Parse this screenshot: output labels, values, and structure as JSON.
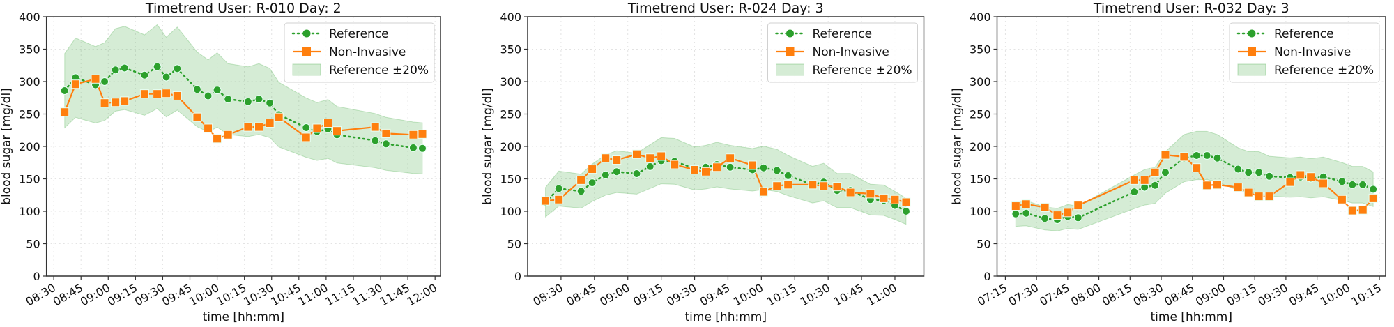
{
  "colors": {
    "reference": "#2ca02c",
    "noninvasive": "#ff7f0e",
    "band": "#2ca02c"
  },
  "chart_data": [
    {
      "type": "line",
      "title": "Timetrend User: R-010 Day: 2",
      "xlabel": "time [hh:mm]",
      "ylabel": "blood sugar [mg/dl]",
      "ylim": [
        0,
        400
      ],
      "yticks": [
        0,
        50,
        100,
        150,
        200,
        250,
        300,
        350,
        400
      ],
      "xlim": [
        "08:26",
        "12:03"
      ],
      "xticks": [
        "08:30",
        "08:45",
        "09:00",
        "09:15",
        "09:30",
        "09:45",
        "10:00",
        "10:15",
        "10:30",
        "10:45",
        "11:00",
        "11:15",
        "11:30",
        "11:45",
        "12:00"
      ],
      "grid": true,
      "legend_position": "top-right",
      "legend": [
        "Reference",
        "Non-Invasive",
        "Reference ±20%"
      ],
      "band_fraction": 0.2,
      "x": [
        "08:36",
        "08:42",
        "08:53",
        "08:58",
        "09:04",
        "09:09",
        "09:20",
        "09:27",
        "09:32",
        "09:38",
        "09:49",
        "09:55",
        "10:00",
        "10:06",
        "10:17",
        "10:23",
        "10:29",
        "10:34",
        "10:49",
        "10:55",
        "11:01",
        "11:06",
        "11:27",
        "11:33",
        "11:48",
        "11:53"
      ],
      "series": [
        {
          "name": "Reference",
          "values": [
            286,
            306,
            295,
            300,
            318,
            321,
            310,
            323,
            307,
            320,
            288,
            278,
            287,
            273,
            269,
            273,
            267,
            249,
            229,
            223,
            227,
            218,
            209,
            204,
            198,
            197
          ]
        },
        {
          "name": "Non-Invasive",
          "values": [
            253,
            296,
            304,
            267,
            268,
            270,
            281,
            281,
            282,
            278,
            245,
            228,
            212,
            218,
            230,
            230,
            236,
            245,
            214,
            228,
            236,
            224,
            230,
            220,
            218,
            219
          ]
        }
      ]
    },
    {
      "type": "line",
      "title": "Timetrend User: R-024 Day: 3",
      "xlabel": "time [hh:mm]",
      "ylabel": "blood sugar [mg/dl]",
      "ylim": [
        0,
        400
      ],
      "yticks": [
        0,
        50,
        100,
        150,
        200,
        250,
        300,
        350,
        400
      ],
      "xlim": [
        "08:15",
        "11:13"
      ],
      "xticks": [
        "08:30",
        "08:45",
        "09:00",
        "09:15",
        "09:30",
        "09:45",
        "10:00",
        "10:15",
        "10:30",
        "10:45",
        "11:00"
      ],
      "grid": true,
      "legend_position": "top-right",
      "legend": [
        "Reference",
        "Non-Invasive",
        "Reference ±20%"
      ],
      "band_fraction": 0.2,
      "x": [
        "08:23",
        "08:29",
        "08:39",
        "08:44",
        "08:50",
        "08:55",
        "09:04",
        "09:10",
        "09:15",
        "09:21",
        "09:30",
        "09:35",
        "09:40",
        "09:46",
        "09:56",
        "10:01",
        "10:07",
        "10:12",
        "10:23",
        "10:28",
        "10:34",
        "10:40",
        "10:49",
        "10:55",
        "11:00",
        "11:05"
      ],
      "series": [
        {
          "name": "Reference",
          "values": [
            114,
            135,
            131,
            144,
            156,
            161,
            158,
            169,
            178,
            177,
            166,
            168,
            172,
            168,
            164,
            167,
            163,
            155,
            141,
            145,
            132,
            132,
            118,
            117,
            109,
            100
          ]
        },
        {
          "name": "Non-Invasive",
          "values": [
            116,
            118,
            148,
            165,
            182,
            179,
            188,
            182,
            185,
            172,
            164,
            161,
            168,
            182,
            171,
            130,
            139,
            141,
            141,
            139,
            138,
            129,
            127,
            120,
            118,
            114
          ]
        }
      ]
    },
    {
      "type": "line",
      "title": "Timetrend User: R-032 Day: 3",
      "xlabel": "time [hh:mm]",
      "ylabel": "blood sugar [mg/dl]",
      "ylim": [
        0,
        400
      ],
      "yticks": [
        0,
        50,
        100,
        150,
        200,
        250,
        300,
        350,
        400
      ],
      "xlim": [
        "07:11",
        "10:18"
      ],
      "xticks": [
        "07:15",
        "07:30",
        "07:45",
        "08:00",
        "08:15",
        "08:30",
        "08:45",
        "09:00",
        "09:15",
        "09:30",
        "09:45",
        "10:00",
        "10:15"
      ],
      "grid": true,
      "legend_position": "top-right",
      "legend": [
        "Reference",
        "Non-Invasive",
        "Reference ±20%"
      ],
      "band_fraction": 0.2,
      "x": [
        "07:20",
        "07:25",
        "07:34",
        "07:40",
        "07:45",
        "07:50",
        "08:17",
        "08:22",
        "08:27",
        "08:32",
        "08:41",
        "08:47",
        "08:52",
        "08:57",
        "09:07",
        "09:12",
        "09:17",
        "09:22",
        "09:32",
        "09:37",
        "09:42",
        "09:48",
        "09:57",
        "10:02",
        "10:07",
        "10:12"
      ],
      "series": [
        {
          "name": "Reference",
          "values": [
            96,
            97,
            89,
            87,
            92,
            90,
            130,
            137,
            140,
            160,
            182,
            186,
            186,
            182,
            165,
            160,
            160,
            154,
            152,
            153,
            151,
            153,
            146,
            141,
            141,
            134
          ]
        },
        {
          "name": "Non-Invasive",
          "values": [
            108,
            111,
            106,
            94,
            98,
            109,
            148,
            148,
            160,
            187,
            184,
            167,
            140,
            141,
            137,
            129,
            123,
            123,
            145,
            156,
            153,
            143,
            118,
            101,
            102,
            120
          ]
        }
      ]
    }
  ]
}
